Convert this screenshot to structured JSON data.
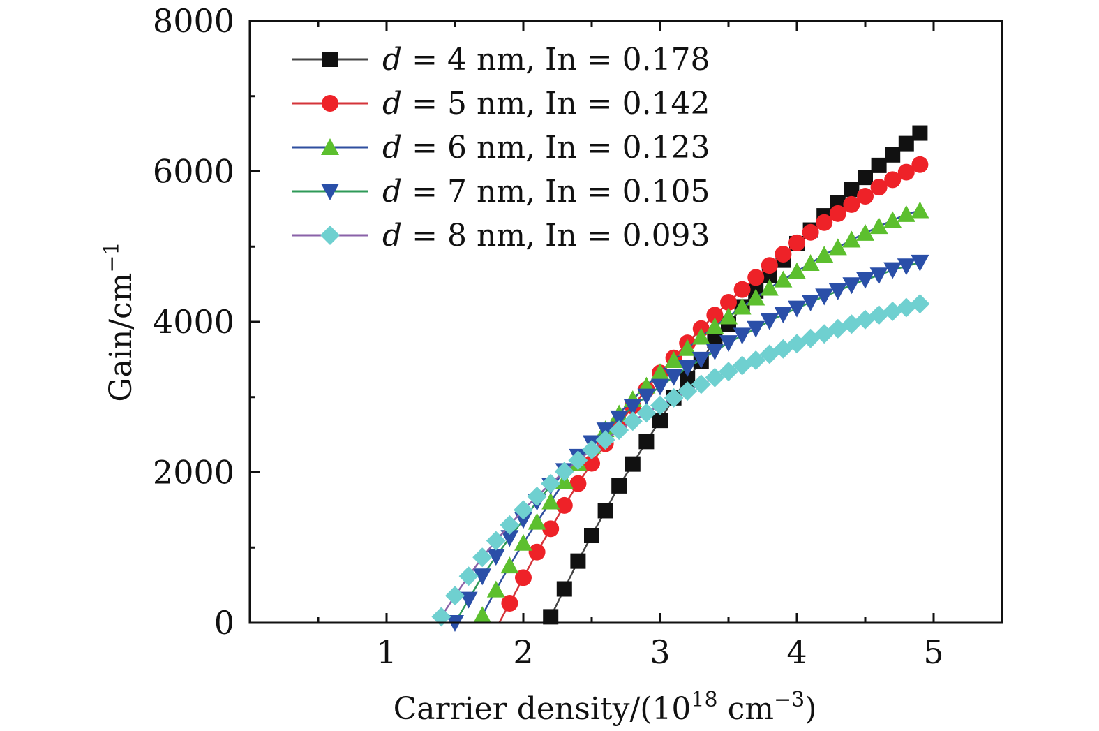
{
  "chart_data": {
    "type": "line",
    "xlabel": {
      "prefix": "Carrier density/(10",
      "exp": "18",
      "middle": " cm",
      "exp2": "−3",
      "suffix": ")"
    },
    "ylabel": {
      "prefix": "Gain/cm",
      "exp": "−1"
    },
    "xlim": [
      0,
      5.5
    ],
    "ylim": [
      0,
      8000
    ],
    "x_ticks": [
      1,
      2,
      3,
      4,
      5
    ],
    "y_ticks": [
      0,
      2000,
      4000,
      6000,
      8000
    ],
    "x_tick_labels": [
      "1",
      "2",
      "3",
      "4",
      "5"
    ],
    "y_tick_labels": [
      "0",
      "2000",
      "4000",
      "6000",
      "8000"
    ],
    "grid": false,
    "legend_position": "top-left",
    "series": [
      {
        "d": "d",
        "label": " = 4 nm, In = 0.178",
        "color": "#111111",
        "line_color": "#444444",
        "marker": "square",
        "x": [
          2.2,
          2.3,
          2.4,
          2.5,
          2.6,
          2.7,
          2.8,
          2.9,
          3.0,
          3.1,
          3.2,
          3.3,
          3.4,
          3.5,
          3.6,
          3.7,
          3.8,
          3.9,
          4.0,
          4.1,
          4.2,
          4.3,
          4.4,
          4.5,
          4.6,
          4.7,
          4.8,
          4.9
        ],
        "y": [
          80,
          450,
          820,
          1160,
          1490,
          1820,
          2110,
          2410,
          2690,
          2990,
          3240,
          3480,
          3750,
          3970,
          4200,
          4410,
          4620,
          4820,
          5040,
          5220,
          5410,
          5580,
          5760,
          5920,
          6080,
          6220,
          6370,
          6510
        ]
      },
      {
        "d": "d",
        "label": " = 5 nm, In = 0.142",
        "color": "#ee2228",
        "line_color": "#d4343a",
        "marker": "circle",
        "x": [
          1.9,
          2.0,
          2.1,
          2.2,
          2.3,
          2.4,
          2.5,
          2.6,
          2.7,
          2.8,
          2.9,
          3.0,
          3.1,
          3.2,
          3.3,
          3.4,
          3.5,
          3.6,
          3.7,
          3.8,
          3.9,
          4.0,
          4.1,
          4.2,
          4.3,
          4.4,
          4.5,
          4.6,
          4.7,
          4.8,
          4.9
        ],
        "y": [
          260,
          600,
          940,
          1250,
          1560,
          1850,
          2120,
          2380,
          2640,
          2880,
          3100,
          3320,
          3520,
          3720,
          3910,
          4090,
          4260,
          4430,
          4590,
          4750,
          4900,
          5050,
          5190,
          5320,
          5440,
          5560,
          5670,
          5790,
          5890,
          5990,
          6090
        ]
      },
      {
        "d": "d",
        "label": " = 6 nm, In = 0.123",
        "color": "#5cbf2e",
        "line_color": "#2f4f9f",
        "marker": "triangle-up",
        "x": [
          1.7,
          1.8,
          1.9,
          2.0,
          2.1,
          2.2,
          2.3,
          2.4,
          2.5,
          2.6,
          2.7,
          2.8,
          2.9,
          3.0,
          3.1,
          3.2,
          3.3,
          3.4,
          3.5,
          3.6,
          3.7,
          3.8,
          3.9,
          4.0,
          4.1,
          4.2,
          4.3,
          4.4,
          4.5,
          4.6,
          4.7,
          4.8,
          4.9
        ],
        "y": [
          100,
          440,
          760,
          1060,
          1340,
          1610,
          1880,
          2120,
          2350,
          2570,
          2780,
          2970,
          3150,
          3330,
          3490,
          3650,
          3800,
          3940,
          4070,
          4200,
          4320,
          4450,
          4560,
          4670,
          4780,
          4890,
          4990,
          5090,
          5180,
          5270,
          5350,
          5430,
          5480
        ]
      },
      {
        "d": "d",
        "label": " = 7 nm, In = 0.105",
        "color": "#2a4fa8",
        "line_color": "#2f9a58",
        "marker": "triangle-down",
        "x": [
          1.5,
          1.6,
          1.7,
          1.8,
          1.9,
          2.0,
          2.1,
          2.2,
          2.3,
          2.4,
          2.5,
          2.6,
          2.7,
          2.8,
          2.9,
          3.0,
          3.1,
          3.2,
          3.3,
          3.4,
          3.5,
          3.6,
          3.7,
          3.8,
          3.9,
          4.0,
          4.1,
          4.2,
          4.3,
          4.4,
          4.5,
          4.6,
          4.7,
          4.8,
          4.9
        ],
        "y": [
          0,
          310,
          620,
          880,
          1130,
          1370,
          1610,
          1820,
          2020,
          2210,
          2390,
          2560,
          2720,
          2870,
          3010,
          3140,
          3270,
          3390,
          3500,
          3610,
          3720,
          3820,
          3910,
          4010,
          4100,
          4180,
          4260,
          4340,
          4410,
          4490,
          4560,
          4620,
          4690,
          4740,
          4790
        ]
      },
      {
        "d": "d",
        "label": " = 8 nm, In = 0.093",
        "color": "#6fd0d0",
        "line_color": "#8a62a8",
        "marker": "diamond",
        "x": [
          1.4,
          1.5,
          1.6,
          1.7,
          1.8,
          1.9,
          2.0,
          2.1,
          2.2,
          2.3,
          2.4,
          2.5,
          2.6,
          2.7,
          2.8,
          2.9,
          3.0,
          3.1,
          3.2,
          3.3,
          3.4,
          3.5,
          3.6,
          3.7,
          3.8,
          3.9,
          4.0,
          4.1,
          4.2,
          4.3,
          4.4,
          4.5,
          4.6,
          4.7,
          4.8,
          4.9
        ],
        "y": [
          80,
          360,
          620,
          870,
          1090,
          1300,
          1500,
          1680,
          1850,
          2010,
          2160,
          2300,
          2430,
          2560,
          2680,
          2790,
          2890,
          2990,
          3080,
          3170,
          3260,
          3340,
          3420,
          3490,
          3570,
          3640,
          3710,
          3780,
          3840,
          3910,
          3970,
          4030,
          4090,
          4140,
          4190,
          4240
        ]
      }
    ]
  }
}
